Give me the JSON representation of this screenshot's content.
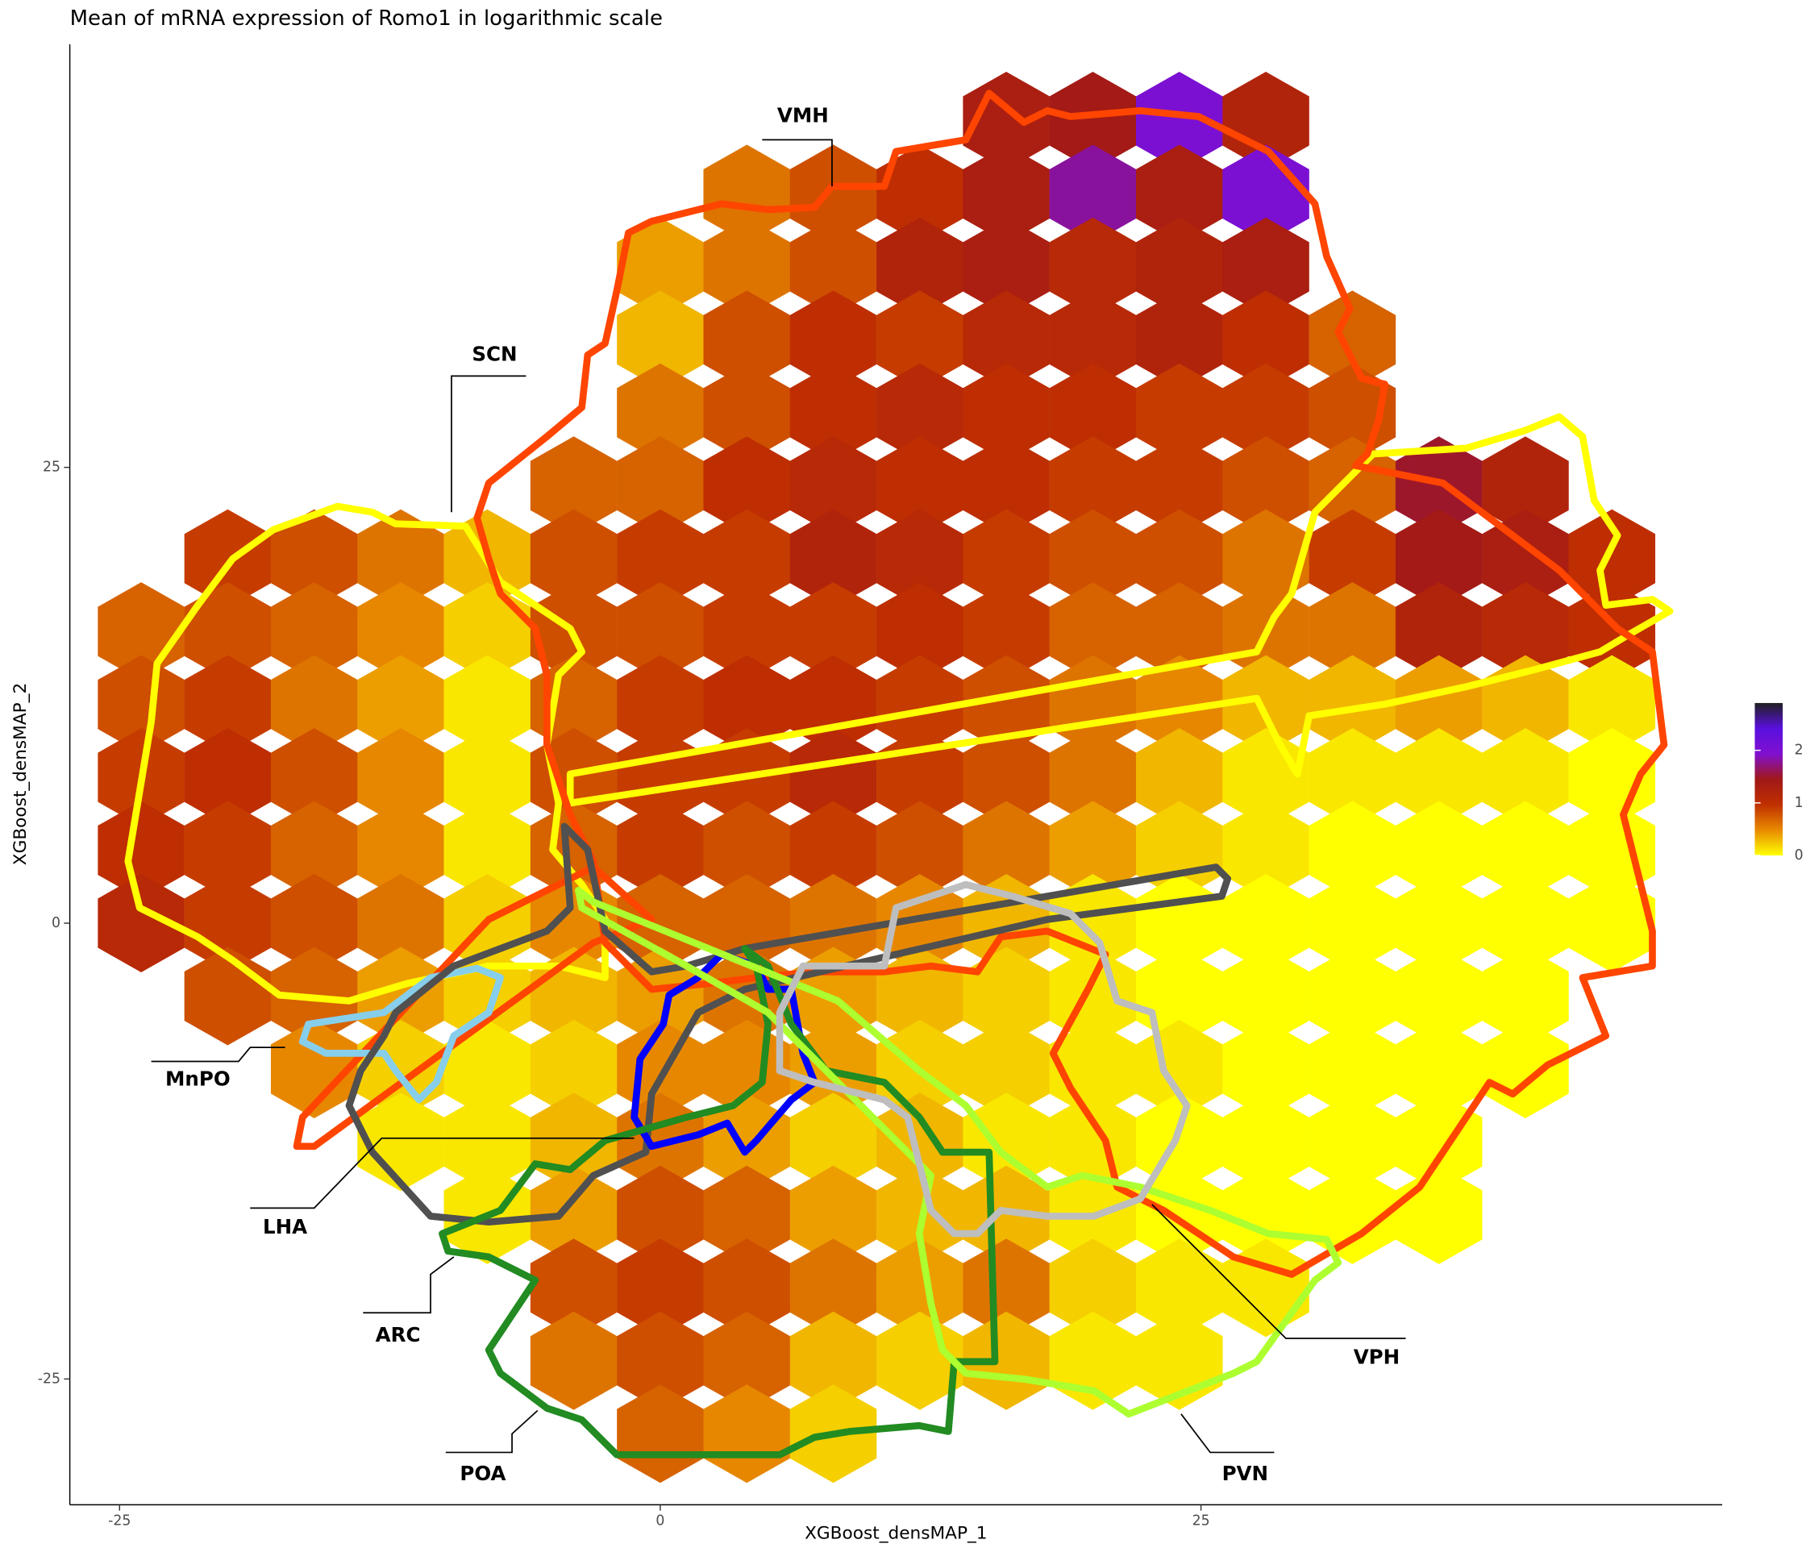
{
  "chart_data": {
    "type": "hexbin",
    "title": "Mean of mRNA expression of Romo1 in logarithmic scale",
    "xlabel": "XGBoost_densMAP_1",
    "ylabel": "XGBoost_densMAP_2",
    "xlim": [
      -27.3,
      49.1
    ],
    "ylim": [
      -31.9,
      48.2
    ],
    "xticks": [
      -25,
      0,
      25
    ],
    "yticks": [
      -25,
      0,
      25
    ],
    "x": [
      -24,
      -20,
      -16,
      -12,
      -8,
      -4,
      0,
      4,
      8,
      12,
      16,
      20,
      24,
      28,
      32,
      36,
      40,
      44
    ],
    "y": [
      44,
      40,
      36,
      32,
      28,
      24,
      20,
      16,
      12,
      8,
      4,
      0,
      -4,
      -8,
      -12,
      -16,
      -20,
      -24,
      -28
    ],
    "values": [
      [
        null,
        null,
        null,
        null,
        null,
        null,
        null,
        null,
        null,
        null,
        1.3,
        1.4,
        2.0,
        1.2,
        null,
        null,
        null,
        null
      ],
      [
        null,
        null,
        null,
        null,
        null,
        null,
        null,
        0.6,
        0.8,
        1.0,
        1.3,
        1.8,
        1.3,
        2.0,
        null,
        null,
        null,
        null
      ],
      [
        null,
        null,
        null,
        null,
        null,
        null,
        0.4,
        0.6,
        0.8,
        1.2,
        1.3,
        1.1,
        1.2,
        1.3,
        null,
        null,
        null,
        null
      ],
      [
        null,
        null,
        null,
        null,
        null,
        null,
        0.3,
        0.8,
        1.0,
        0.9,
        1.1,
        1.1,
        1.2,
        1.0,
        0.7,
        null,
        null,
        null
      ],
      [
        null,
        null,
        null,
        null,
        null,
        null,
        0.6,
        0.8,
        1.0,
        1.1,
        1.0,
        1.0,
        0.9,
        0.9,
        0.8,
        null,
        null,
        null
      ],
      [
        null,
        null,
        null,
        null,
        null,
        0.7,
        0.7,
        1.0,
        1.1,
        1.0,
        1.0,
        0.9,
        0.9,
        0.8,
        0.7,
        1.5,
        1.2,
        null
      ],
      [
        null,
        0.9,
        0.8,
        0.6,
        0.3,
        0.8,
        0.9,
        0.9,
        1.2,
        1.1,
        0.9,
        0.8,
        0.8,
        0.6,
        0.9,
        1.4,
        1.3,
        1.0
      ],
      [
        0.7,
        0.8,
        0.7,
        0.5,
        0.2,
        0.8,
        0.8,
        0.9,
        0.9,
        1.0,
        0.9,
        0.7,
        0.7,
        0.6,
        0.6,
        1.2,
        1.1,
        1.0
      ],
      [
        0.8,
        0.9,
        0.6,
        0.4,
        0.1,
        0.7,
        0.9,
        1.0,
        1.0,
        0.9,
        0.8,
        0.6,
        0.5,
        0.3,
        0.3,
        0.4,
        0.3,
        0.1
      ],
      [
        0.9,
        1.0,
        0.8,
        0.5,
        0.1,
        0.8,
        0.9,
        0.9,
        1.1,
        0.9,
        0.8,
        0.6,
        0.3,
        0.1,
        0.1,
        0.1,
        0.1,
        0
      ],
      [
        1.0,
        0.9,
        0.7,
        0.5,
        0.1,
        0.7,
        0.9,
        0.8,
        0.9,
        0.8,
        0.6,
        0.4,
        0.2,
        0.1,
        0,
        0,
        0,
        0
      ],
      [
        1.1,
        0.9,
        0.8,
        0.6,
        0.2,
        0.5,
        0.7,
        0.7,
        0.6,
        0.5,
        0.3,
        0.1,
        0,
        0,
        0,
        0,
        0,
        0
      ],
      [
        null,
        0.8,
        0.7,
        0.4,
        0.2,
        0.3,
        0.4,
        0.6,
        0.4,
        0.3,
        0.2,
        0.1,
        0,
        0,
        0,
        0,
        0,
        null
      ],
      [
        null,
        null,
        0.5,
        0.2,
        0.1,
        0.2,
        0.5,
        0.5,
        0.4,
        0.2,
        0.2,
        0.1,
        0.1,
        0,
        0,
        0,
        0,
        null
      ],
      [
        null,
        null,
        null,
        0.1,
        0.1,
        0.3,
        0.6,
        0.4,
        0.2,
        0.3,
        0.1,
        0.1,
        0,
        0,
        0,
        0,
        null,
        null
      ],
      [
        null,
        null,
        null,
        null,
        0.1,
        0.4,
        0.8,
        0.7,
        0.4,
        0.3,
        0.3,
        0.1,
        0,
        0,
        0,
        0,
        null,
        null
      ],
      [
        null,
        null,
        null,
        null,
        null,
        0.8,
        0.9,
        0.8,
        0.6,
        0.4,
        0.6,
        0.2,
        0.1,
        0.1,
        null,
        null,
        null,
        null
      ],
      [
        null,
        null,
        null,
        null,
        null,
        0.6,
        0.8,
        0.7,
        0.3,
        0.2,
        0.3,
        0.1,
        0.1,
        null,
        null,
        null,
        null,
        null
      ],
      [
        null,
        null,
        null,
        null,
        null,
        null,
        0.7,
        0.5,
        0.2,
        null,
        null,
        null,
        null,
        null,
        null,
        null,
        null,
        null
      ]
    ],
    "color_scale": {
      "colors": [
        "#ffff00",
        "#e88a00",
        "#c03000",
        "#a01818",
        "#8010d0",
        "#5a10e0",
        "#202020"
      ],
      "lim": [
        0,
        2.9
      ],
      "ticks": [
        0,
        1,
        2
      ]
    },
    "annotations": [
      "VMH",
      "SCN",
      "MnPO",
      "LHA",
      "ARC",
      "POA",
      "PVN",
      "VPH"
    ]
  }
}
